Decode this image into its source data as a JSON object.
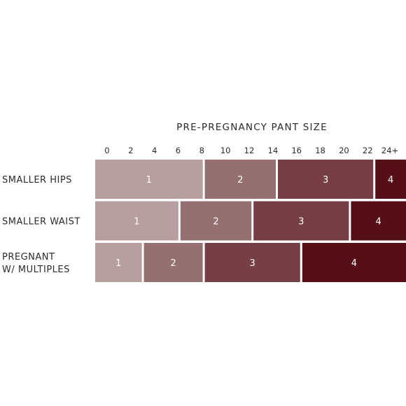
{
  "chart_data": {
    "type": "bar",
    "title": "PRE-PREGNANCY PANT SIZE",
    "x_ticks": [
      "0",
      "2",
      "4",
      "6",
      "8",
      "10",
      "12",
      "14",
      "16",
      "18",
      "20",
      "22",
      "24+"
    ],
    "xlim": [
      0,
      24
    ],
    "grid": false,
    "legend": "none",
    "levels": [
      "1",
      "2",
      "3",
      "4"
    ],
    "level_colors": {
      "1": "#b89f9f",
      "2": "#957070",
      "3": "#763f45",
      "4": "#560f17"
    },
    "rows": [
      {
        "label_lines": [
          "SMALLER HIPS"
        ],
        "segments": [
          {
            "level": "1",
            "start": 0,
            "end": 9
          },
          {
            "level": "2",
            "start": 9,
            "end": 15
          },
          {
            "level": "3",
            "start": 15,
            "end": 23
          },
          {
            "level": "4",
            "start": 23,
            "end": 24
          }
        ]
      },
      {
        "label_lines": [
          "SMALLER WAIST"
        ],
        "segments": [
          {
            "level": "1",
            "start": 0,
            "end": 7
          },
          {
            "level": "2",
            "start": 7,
            "end": 13
          },
          {
            "level": "3",
            "start": 13,
            "end": 21
          },
          {
            "level": "4",
            "start": 21,
            "end": 24
          }
        ]
      },
      {
        "label_lines": [
          "PREGNANT",
          "W/ MULTIPLES"
        ],
        "segments": [
          {
            "level": "1",
            "start": 0,
            "end": 4
          },
          {
            "level": "2",
            "start": 4,
            "end": 9
          },
          {
            "level": "3",
            "start": 9,
            "end": 17
          },
          {
            "level": "4",
            "start": 17,
            "end": 24
          }
        ]
      }
    ]
  }
}
